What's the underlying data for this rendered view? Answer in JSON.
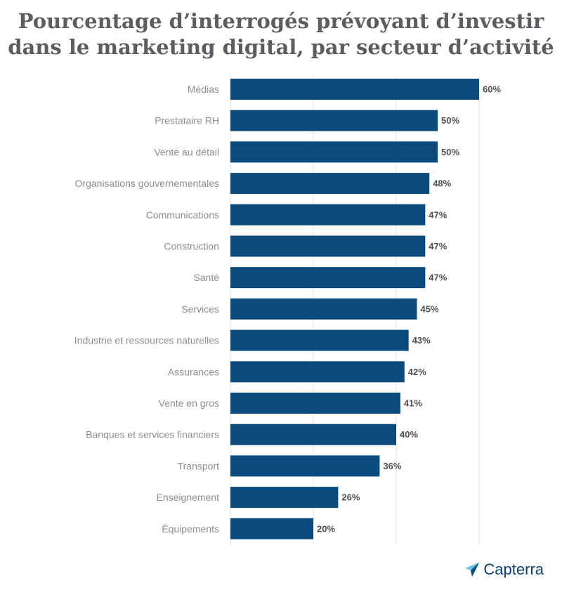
{
  "chart_data": {
    "type": "bar",
    "orientation": "horizontal",
    "title_lines": [
      "Pourcentage d’interrogés prévoyant d’investir",
      "dans le marketing digital, par secteur d’activité"
    ],
    "categories": [
      "Médias",
      "Prestataire RH",
      "Vente au détail",
      "Organisations gouvernementales",
      "Communications",
      "Construction",
      "Santé",
      "Services",
      "Industrie et ressources naturelles",
      "Assurances",
      "Vente en gros",
      "Banques et services financiers",
      "Transport",
      "Enseignement",
      "Équipements"
    ],
    "values": [
      60,
      50,
      50,
      48,
      47,
      47,
      47,
      45,
      43,
      42,
      41,
      40,
      36,
      26,
      20
    ],
    "value_suffix": "%",
    "xlim": [
      0,
      60
    ],
    "grid": true,
    "bar_color": "#0b4a7d"
  },
  "brand": {
    "name": "Capterra"
  },
  "colors": {
    "title": "#5b5d61",
    "category_label": "#8a8d92",
    "value_label": "#4d4f53",
    "gridline": "#e3e3e3",
    "brand": "#0d3f74"
  }
}
